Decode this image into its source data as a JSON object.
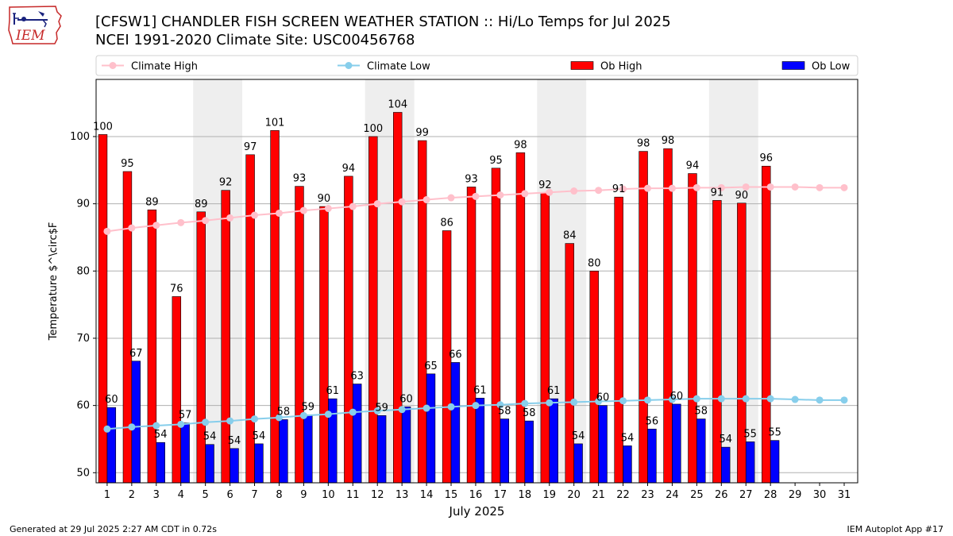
{
  "header": {
    "title_line1": "[CFSW1] CHANDLER FISH SCREEN WEATHER STATION :: Hi/Lo Temps for Jul 2025",
    "title_line2": "NCEI 1991-2020 Climate Site: USC00456768"
  },
  "logo": {
    "text": "IEM",
    "icon": "iem-iowa-logo-icon"
  },
  "footer": {
    "left": "Generated at 29 Jul 2025 2:27 AM CDT in 0.72s",
    "right": "IEM Autoplot App #17"
  },
  "colors": {
    "ob_high": "#ff0000",
    "ob_low": "#0000ff",
    "climate_high": "#ffc0cb",
    "climate_low": "#87ceeb",
    "weekend_band": "#eeeeee"
  },
  "chart_data": {
    "type": "bar",
    "xlabel": "July 2025",
    "ylabel": "Temperature $^\\circ$F",
    "ylim": [
      48.5,
      108.5
    ],
    "yticks": [
      50,
      60,
      70,
      80,
      90,
      100
    ],
    "xlim": [
      0.55,
      31.55
    ],
    "grid": "y",
    "legend_position": "top",
    "days": [
      1,
      2,
      3,
      4,
      5,
      6,
      7,
      8,
      9,
      10,
      11,
      12,
      13,
      14,
      15,
      16,
      17,
      18,
      19,
      20,
      21,
      22,
      23,
      24,
      25,
      26,
      27,
      28,
      29,
      30,
      31
    ],
    "weekend_bands": [
      [
        5,
        6
      ],
      [
        12,
        13
      ],
      [
        19,
        20
      ],
      [
        26,
        27
      ]
    ],
    "series": [
      {
        "name": "Climate High",
        "kind": "line",
        "values": [
          85.9,
          86.4,
          86.8,
          87.2,
          87.5,
          87.9,
          88.3,
          88.6,
          89.0,
          89.3,
          89.6,
          90.0,
          90.3,
          90.6,
          90.9,
          91.1,
          91.3,
          91.5,
          91.7,
          91.9,
          92.0,
          92.2,
          92.3,
          92.3,
          92.4,
          92.4,
          92.5,
          92.5,
          92.5,
          92.4,
          92.4
        ]
      },
      {
        "name": "Climate Low",
        "kind": "line",
        "values": [
          56.5,
          56.8,
          57.0,
          57.2,
          57.5,
          57.7,
          58.0,
          58.2,
          58.5,
          58.7,
          59.0,
          59.2,
          59.4,
          59.6,
          59.8,
          60.0,
          60.1,
          60.3,
          60.4,
          60.5,
          60.6,
          60.7,
          60.8,
          60.9,
          61.0,
          61.0,
          61.0,
          61.0,
          60.9,
          60.8,
          60.8
        ]
      },
      {
        "name": "Ob High",
        "kind": "bar",
        "values": [
          100,
          95,
          89,
          76,
          89,
          92,
          97,
          101,
          93,
          90,
          94,
          100,
          104,
          99,
          86,
          93,
          95,
          98,
          92,
          84,
          80,
          91,
          98,
          98,
          94,
          91,
          90,
          96,
          null,
          null,
          null
        ],
        "plotted": [
          100.3,
          94.8,
          89.1,
          76.2,
          88.8,
          92.0,
          97.3,
          100.9,
          92.6,
          89.6,
          94.1,
          100.0,
          103.6,
          99.4,
          86.0,
          92.5,
          95.3,
          97.6,
          91.6,
          84.1,
          80.0,
          91.0,
          97.8,
          98.2,
          94.5,
          90.5,
          90.1,
          95.6,
          null,
          null,
          null
        ]
      },
      {
        "name": "Ob Low",
        "kind": "bar",
        "values": [
          60,
          67,
          54,
          57,
          54,
          54,
          54,
          58,
          59,
          61,
          63,
          59,
          60,
          65,
          66,
          61,
          58,
          58,
          61,
          54,
          60,
          54,
          56,
          60,
          58,
          54,
          55,
          55,
          null,
          null,
          null
        ],
        "plotted": [
          59.7,
          66.6,
          54.5,
          57.4,
          54.2,
          53.6,
          54.3,
          57.9,
          58.6,
          61.0,
          63.2,
          58.5,
          59.8,
          64.7,
          66.4,
          61.1,
          58.0,
          57.7,
          61.0,
          54.3,
          60.0,
          54.0,
          56.5,
          60.2,
          58.0,
          53.8,
          54.6,
          54.8,
          null,
          null,
          null
        ]
      }
    ]
  }
}
